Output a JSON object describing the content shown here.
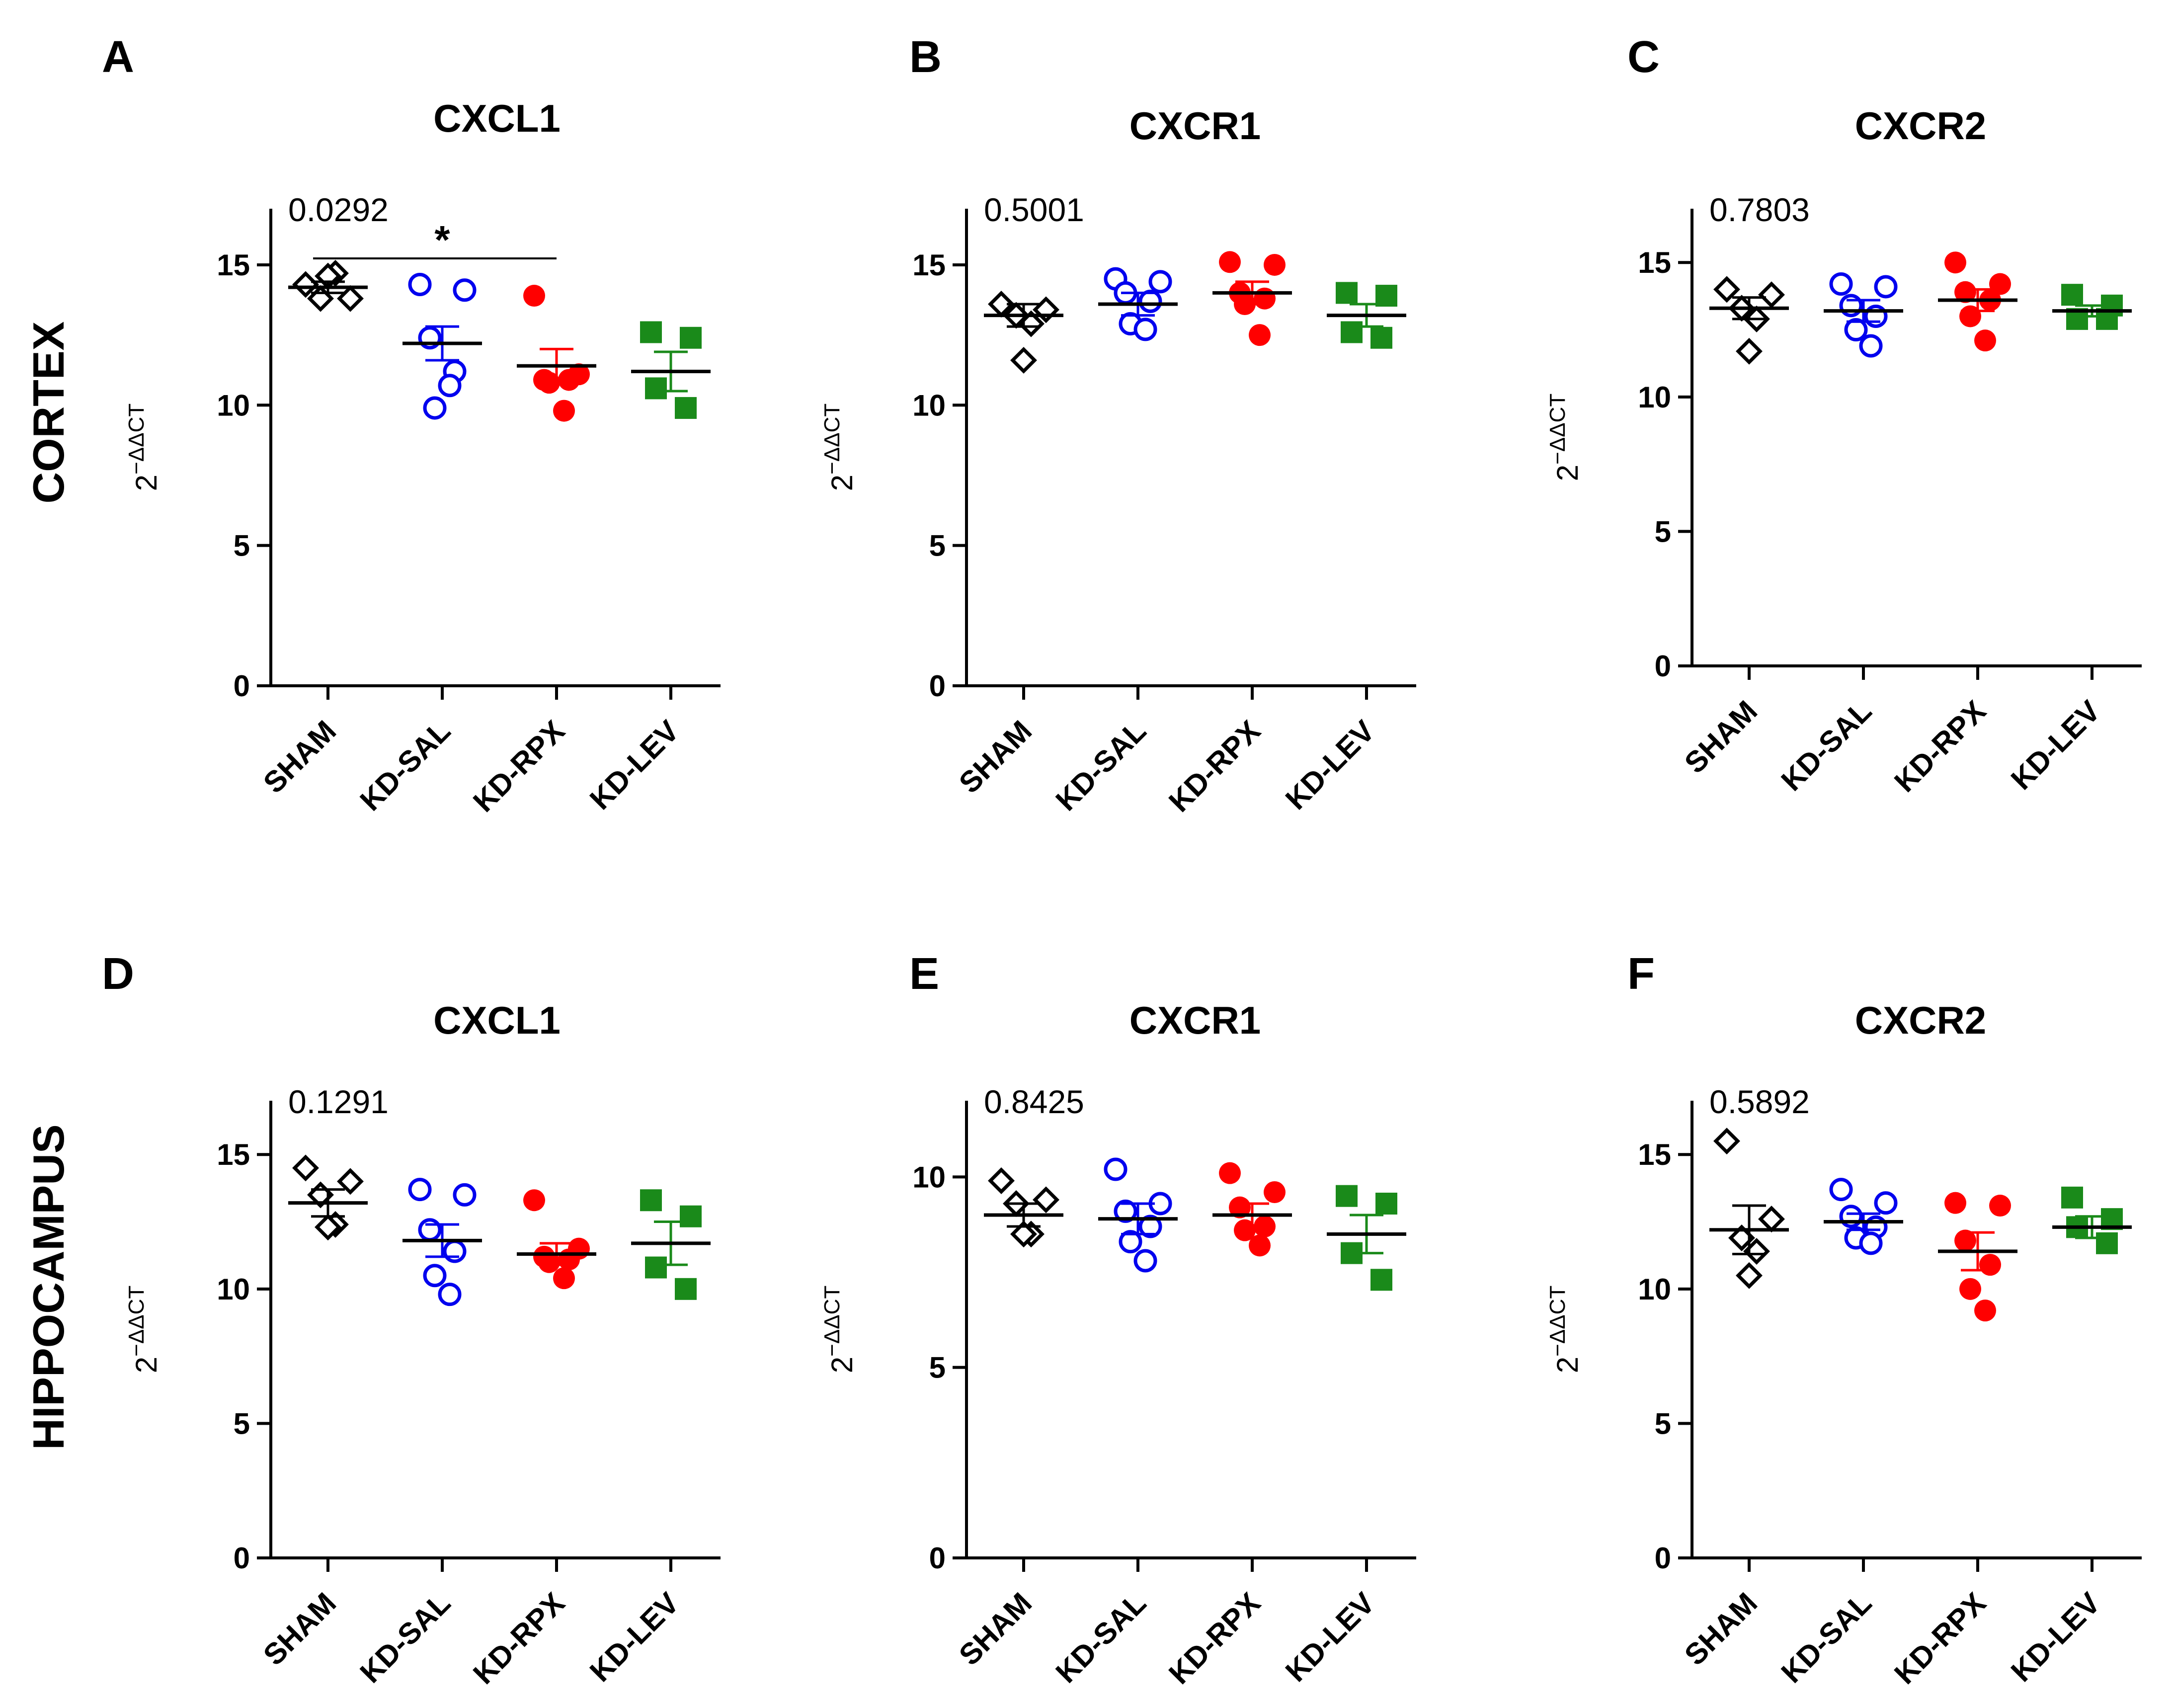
{
  "row_labels": [
    "CORTEX",
    "HIPPOCAMPUS"
  ],
  "groups": [
    "SHAM",
    "KD-SAL",
    "KD-RPX",
    "KD-LEV"
  ],
  "colors": {
    "SHAM": "#000000",
    "KD-SAL": "#0000ee",
    "KD-RPX": "#ff0000",
    "KD-LEV": "#1a8a1a"
  },
  "markers": {
    "SHAM": "open-diamond",
    "KD-SAL": "open-circle",
    "KD-RPX": "filled-circle",
    "KD-LEV": "filled-square"
  },
  "chart_data": [
    {
      "panel": "A",
      "title": "CXCL1",
      "type": "scatter",
      "ylabel": "2^−ΔΔCT",
      "ylim": [
        0,
        17
      ],
      "yticks": [
        0,
        5,
        10,
        15
      ],
      "pvalue": "0.0292",
      "significance": {
        "from": "SHAM",
        "to": "KD-RPX",
        "label": "*"
      },
      "series": [
        {
          "name": "SHAM",
          "values": [
            14.3,
            13.8,
            13.8,
            14.7,
            14.6
          ],
          "mean": 14.2,
          "sem": 0.2
        },
        {
          "name": "KD-SAL",
          "values": [
            14.3,
            14.1,
            12.4,
            11.2,
            9.9,
            10.7
          ],
          "mean": 12.2,
          "sem": 0.6
        },
        {
          "name": "KD-RPX",
          "values": [
            13.9,
            11.1,
            10.9,
            10.9,
            10.8,
            9.8
          ],
          "mean": 11.4,
          "sem": 0.6
        },
        {
          "name": "KD-LEV",
          "values": [
            12.6,
            12.4,
            10.6,
            9.9
          ],
          "mean": 11.2,
          "sem": 0.7
        }
      ]
    },
    {
      "panel": "B",
      "title": "CXCR1",
      "type": "scatter",
      "ylabel": "2^−ΔΔCT",
      "ylim": [
        0,
        17
      ],
      "yticks": [
        0,
        5,
        10,
        15
      ],
      "pvalue": "0.5001",
      "series": [
        {
          "name": "SHAM",
          "values": [
            13.6,
            13.4,
            13.2,
            12.9,
            11.6
          ],
          "mean": 13.2,
          "sem": 0.4
        },
        {
          "name": "KD-SAL",
          "values": [
            14.5,
            14.4,
            14.0,
            13.7,
            12.9,
            12.7
          ],
          "mean": 13.6,
          "sem": 0.4
        },
        {
          "name": "KD-RPX",
          "values": [
            15.1,
            15.0,
            14.0,
            13.8,
            13.6,
            12.5
          ],
          "mean": 14.0,
          "sem": 0.4
        },
        {
          "name": "KD-LEV",
          "values": [
            14.0,
            13.9,
            12.6,
            12.4
          ],
          "mean": 13.2,
          "sem": 0.4
        }
      ]
    },
    {
      "panel": "C",
      "title": "CXCR2",
      "type": "scatter",
      "ylabel": "2^−ΔΔCT",
      "ylim": [
        0,
        17
      ],
      "yticks": [
        0,
        5,
        10,
        15
      ],
      "pvalue": "0.7803",
      "series": [
        {
          "name": "SHAM",
          "values": [
            14.0,
            13.8,
            13.3,
            12.9,
            11.7
          ],
          "mean": 13.3,
          "sem": 0.4
        },
        {
          "name": "KD-SAL",
          "values": [
            14.2,
            14.1,
            13.4,
            13.0,
            12.5,
            11.9
          ],
          "mean": 13.2,
          "sem": 0.4
        },
        {
          "name": "KD-RPX",
          "values": [
            15.0,
            14.2,
            13.9,
            13.6,
            13.0,
            12.1
          ],
          "mean": 13.6,
          "sem": 0.4
        },
        {
          "name": "KD-LEV",
          "values": [
            13.8,
            13.4,
            12.9,
            12.9
          ],
          "mean": 13.2,
          "sem": 0.2
        }
      ]
    },
    {
      "panel": "D",
      "title": "CXCL1",
      "type": "scatter",
      "ylabel": "2^−ΔΔCT",
      "ylim": [
        0,
        17
      ],
      "yticks": [
        0,
        5,
        10,
        15
      ],
      "pvalue": "0.1291",
      "series": [
        {
          "name": "SHAM",
          "values": [
            14.5,
            14.0,
            13.5,
            12.4,
            12.3
          ],
          "mean": 13.2,
          "sem": 0.5
        },
        {
          "name": "KD-SAL",
          "values": [
            13.7,
            13.5,
            12.2,
            11.4,
            10.5,
            9.8
          ],
          "mean": 11.8,
          "sem": 0.6
        },
        {
          "name": "KD-RPX",
          "values": [
            13.3,
            11.5,
            11.2,
            11.1,
            11.0,
            10.4
          ],
          "mean": 11.3,
          "sem": 0.4
        },
        {
          "name": "KD-LEV",
          "values": [
            13.3,
            12.7,
            10.8,
            10.0
          ],
          "mean": 11.7,
          "sem": 0.8
        }
      ]
    },
    {
      "panel": "E",
      "title": "CXCR1",
      "type": "scatter",
      "ylabel": "2^−ΔΔCT",
      "ylim": [
        0,
        12
      ],
      "yticks": [
        0,
        5,
        10
      ],
      "pvalue": "0.8425",
      "series": [
        {
          "name": "SHAM",
          "values": [
            9.9,
            9.4,
            9.3,
            8.5,
            8.5
          ],
          "mean": 9.0,
          "sem": 0.3
        },
        {
          "name": "KD-SAL",
          "values": [
            10.2,
            9.3,
            9.1,
            8.7,
            8.3,
            7.8
          ],
          "mean": 8.9,
          "sem": 0.4
        },
        {
          "name": "KD-RPX",
          "values": [
            10.1,
            9.6,
            9.2,
            8.7,
            8.6,
            8.2
          ],
          "mean": 9.0,
          "sem": 0.3
        },
        {
          "name": "KD-LEV",
          "values": [
            9.5,
            9.3,
            8.0,
            7.3
          ],
          "mean": 8.5,
          "sem": 0.5
        }
      ]
    },
    {
      "panel": "F",
      "title": "CXCR2",
      "type": "scatter",
      "ylabel": "2^−ΔΔCT",
      "ylim": [
        0,
        17
      ],
      "yticks": [
        0,
        5,
        10,
        15
      ],
      "pvalue": "0.5892",
      "series": [
        {
          "name": "SHAM",
          "values": [
            15.5,
            12.6,
            11.9,
            11.4,
            10.5
          ],
          "mean": 12.2,
          "sem": 0.9
        },
        {
          "name": "KD-SAL",
          "values": [
            13.7,
            13.2,
            12.7,
            12.3,
            11.9,
            11.7
          ],
          "mean": 12.5,
          "sem": 0.3
        },
        {
          "name": "KD-RPX",
          "values": [
            13.2,
            13.1,
            11.8,
            10.9,
            10.0,
            9.2
          ],
          "mean": 11.4,
          "sem": 0.7
        },
        {
          "name": "KD-LEV",
          "values": [
            13.4,
            12.6,
            12.3,
            11.7
          ],
          "mean": 12.3,
          "sem": 0.4
        }
      ]
    }
  ]
}
